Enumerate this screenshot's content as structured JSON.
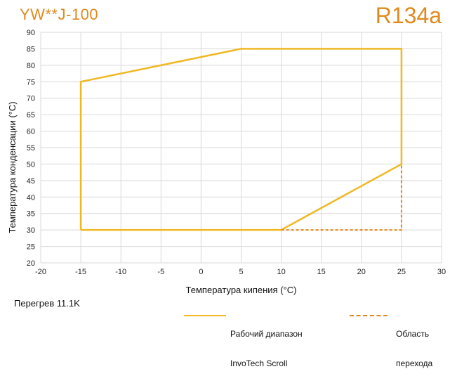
{
  "header": {
    "model": "YW**J-100",
    "refrigerant": "R134a"
  },
  "notes": {
    "superheat": "Перегрев 11.1K"
  },
  "legend": {
    "operating": {
      "line1": "Рабочий диапазон",
      "line2": "InvoTech Scroll"
    },
    "transition": {
      "line1": "Область",
      "line2": "перехода"
    }
  },
  "colors": {
    "envelope": "#f0b823",
    "transition": "#e08a1e",
    "grid": "#d9d9d9"
  },
  "chart_data": {
    "type": "line",
    "xlabel": "Температура кипения (°C)",
    "ylabel": "Температура конденсации (°C)",
    "xlim": [
      -20,
      30
    ],
    "ylim": [
      20,
      90
    ],
    "xticks": [
      -20,
      -15,
      -10,
      -5,
      0,
      5,
      10,
      15,
      20,
      25,
      30
    ],
    "yticks": [
      20,
      25,
      30,
      35,
      40,
      45,
      50,
      55,
      60,
      65,
      70,
      75,
      80,
      85,
      90
    ],
    "grid": true,
    "series": [
      {
        "name": "Рабочий диапазон InvoTech Scroll",
        "style": "solid",
        "points": [
          [
            -15,
            30
          ],
          [
            -15,
            75
          ],
          [
            5,
            85
          ],
          [
            25,
            85
          ],
          [
            25,
            50
          ],
          [
            10,
            30
          ],
          [
            -15,
            30
          ]
        ]
      },
      {
        "name": "Область перехода",
        "style": "dashed",
        "points": [
          [
            10,
            30
          ],
          [
            25,
            30
          ],
          [
            25,
            50
          ]
        ]
      }
    ]
  }
}
